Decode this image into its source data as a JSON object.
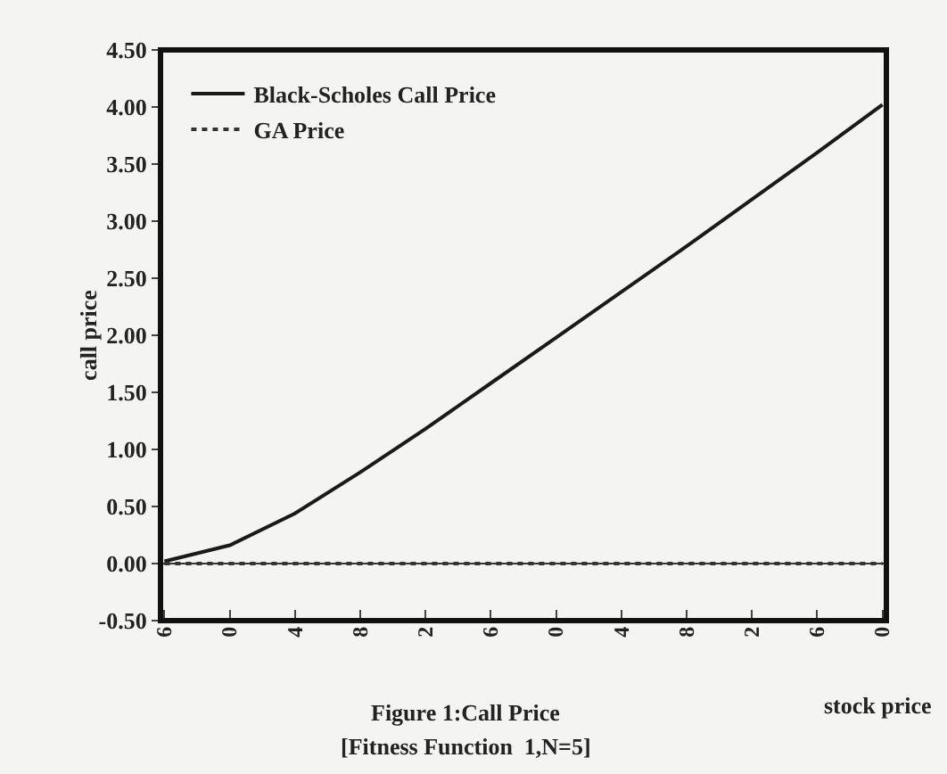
{
  "chart_data": {
    "type": "line",
    "title": "Figure 1:Call Price",
    "subtitle": "[Fitness Function  1,N=5]",
    "xlabel": "stock price",
    "ylabel": "call price",
    "categories": [
      "6",
      "0",
      "4",
      "8",
      "2",
      "6",
      "0",
      "4",
      "8",
      "2",
      "6",
      "0"
    ],
    "series": [
      {
        "name": "Black-Scholes Call Price",
        "color": "#1a1a1a",
        "line_style": "solid",
        "values": [
          0.02,
          0.16,
          0.44,
          0.8,
          1.18,
          1.58,
          1.98,
          2.38,
          2.78,
          3.19,
          3.6,
          4.02
        ]
      },
      {
        "name": "GA Price",
        "color": "#333333",
        "line_style": "dotted",
        "values": [
          0,
          0,
          0,
          0,
          0,
          0,
          0,
          0,
          0,
          0,
          0,
          0
        ]
      }
    ],
    "ylim": [
      -0.5,
      4.5
    ],
    "yticks": [
      {
        "value": -0.5,
        "label": "-0.50"
      },
      {
        "value": 0,
        "label": "0.00"
      },
      {
        "value": 0.5,
        "label": "0.50"
      },
      {
        "value": 1,
        "label": "1.00"
      },
      {
        "value": 1.5,
        "label": "1.50"
      },
      {
        "value": 2,
        "label": "2.00"
      },
      {
        "value": 2.5,
        "label": "2.50"
      },
      {
        "value": 3,
        "label": "3.00"
      },
      {
        "value": 3.5,
        "label": "3.50"
      },
      {
        "value": 4,
        "label": "4.00"
      },
      {
        "value": 4.5,
        "label": "4.50"
      }
    ],
    "grid": false,
    "legend": "top left",
    "marker": "none"
  }
}
